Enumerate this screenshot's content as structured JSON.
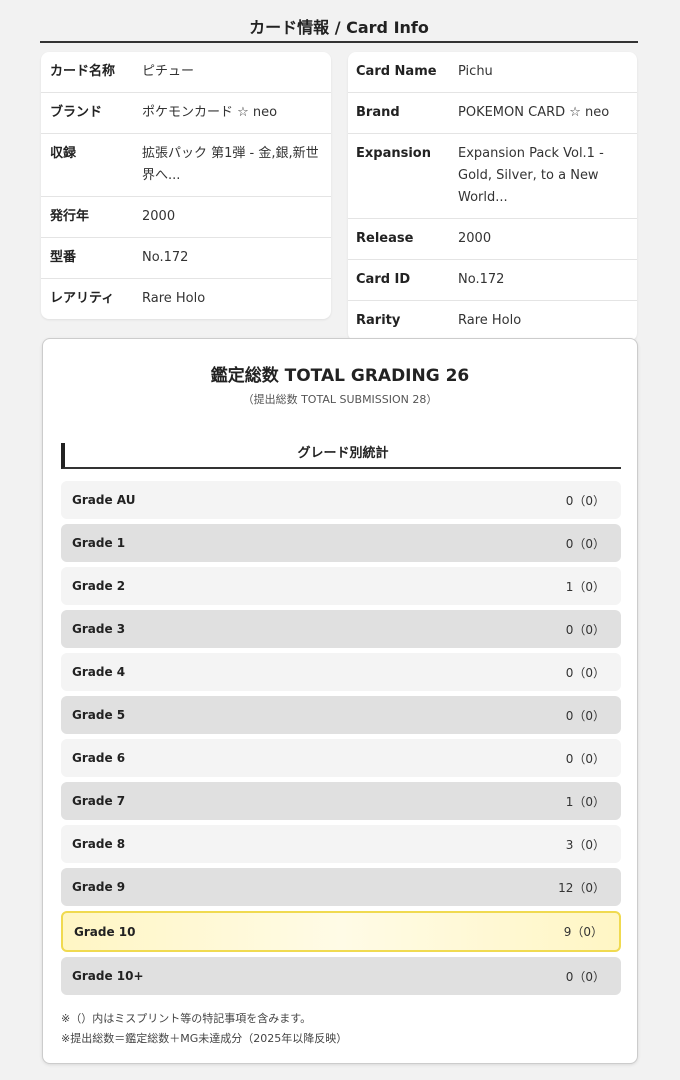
{
  "title": "カード情報 / Card Info",
  "info_jp": [
    {
      "label": "カード名称",
      "value": "ピチュー"
    },
    {
      "label": "ブランド",
      "value": "ポケモンカード ☆ neo"
    },
    {
      "label": "収録",
      "value": "拡張パック 第1弾 - 金,銀,新世界へ..."
    },
    {
      "label": "発行年",
      "value": "2000"
    },
    {
      "label": "型番",
      "value": "No.172"
    },
    {
      "label": "レアリティ",
      "value": "Rare Holo"
    }
  ],
  "info_en": [
    {
      "label": "Card Name",
      "value": "Pichu"
    },
    {
      "label": "Brand",
      "value": "POKEMON CARD ☆ neo"
    },
    {
      "label": "Expansion",
      "value": "Expansion Pack Vol.1 - Gold, Silver, to a New World..."
    },
    {
      "label": "Release",
      "value": "2000"
    },
    {
      "label": "Card ID",
      "value": "No.172"
    },
    {
      "label": "Rarity",
      "value": "Rare Holo"
    }
  ],
  "grading": {
    "title": "鑑定総数 TOTAL GRADING 26",
    "subtitle": "（提出総数 TOTAL SUBMISSION 28）",
    "section": "グレード別統計",
    "highlight_color": "#f0da50",
    "grades": [
      {
        "name": "Grade AU",
        "count": "0（0）"
      },
      {
        "name": "Grade 1",
        "count": "0（0）"
      },
      {
        "name": "Grade 2",
        "count": "1（0）"
      },
      {
        "name": "Grade 3",
        "count": "0（0）"
      },
      {
        "name": "Grade 4",
        "count": "0（0）"
      },
      {
        "name": "Grade 5",
        "count": "0（0）"
      },
      {
        "name": "Grade 6",
        "count": "0（0）"
      },
      {
        "name": "Grade 7",
        "count": "1（0）"
      },
      {
        "name": "Grade 8",
        "count": "3（0）"
      },
      {
        "name": "Grade 9",
        "count": "12（0）"
      },
      {
        "name": "Grade 10",
        "count": "9（0）",
        "highlighted": true
      },
      {
        "name": "Grade 10+",
        "count": "0（0）"
      }
    ],
    "notes": [
      "※（）内はミスプリント等の特記事項を含みます。",
      "※提出総数＝鑑定総数＋MG未達成分（2025年以降反映）"
    ]
  }
}
